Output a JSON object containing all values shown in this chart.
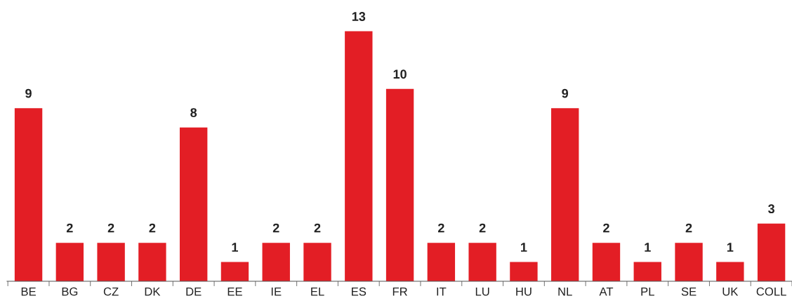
{
  "chart_data": {
    "type": "bar",
    "categories": [
      "BE",
      "BG",
      "CZ",
      "DK",
      "DE",
      "EE",
      "IE",
      "EL",
      "ES",
      "FR",
      "IT",
      "LU",
      "HU",
      "NL",
      "AT",
      "PL",
      "SE",
      "UK",
      "COLL"
    ],
    "values": [
      9,
      2,
      2,
      2,
      8,
      1,
      2,
      2,
      13,
      10,
      2,
      2,
      1,
      9,
      2,
      1,
      2,
      1,
      3
    ],
    "color": "#e31e25",
    "data_labels": true,
    "grid": false,
    "legend": false
  }
}
